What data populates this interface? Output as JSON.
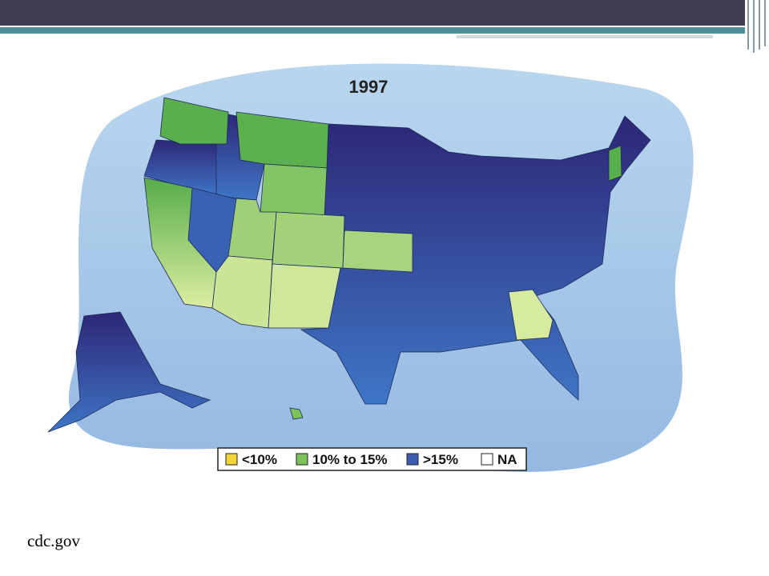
{
  "map": {
    "title": "1997",
    "legend": [
      {
        "label": "<10%",
        "color": "#f3d43a"
      },
      {
        "label": "10% to 15%",
        "color": "#7cc35c"
      },
      {
        "label": ">15%",
        "color": "#3b5cb0"
      },
      {
        "label": "NA",
        "color": "#ffffff"
      }
    ]
  },
  "source": "cdc.gov"
}
